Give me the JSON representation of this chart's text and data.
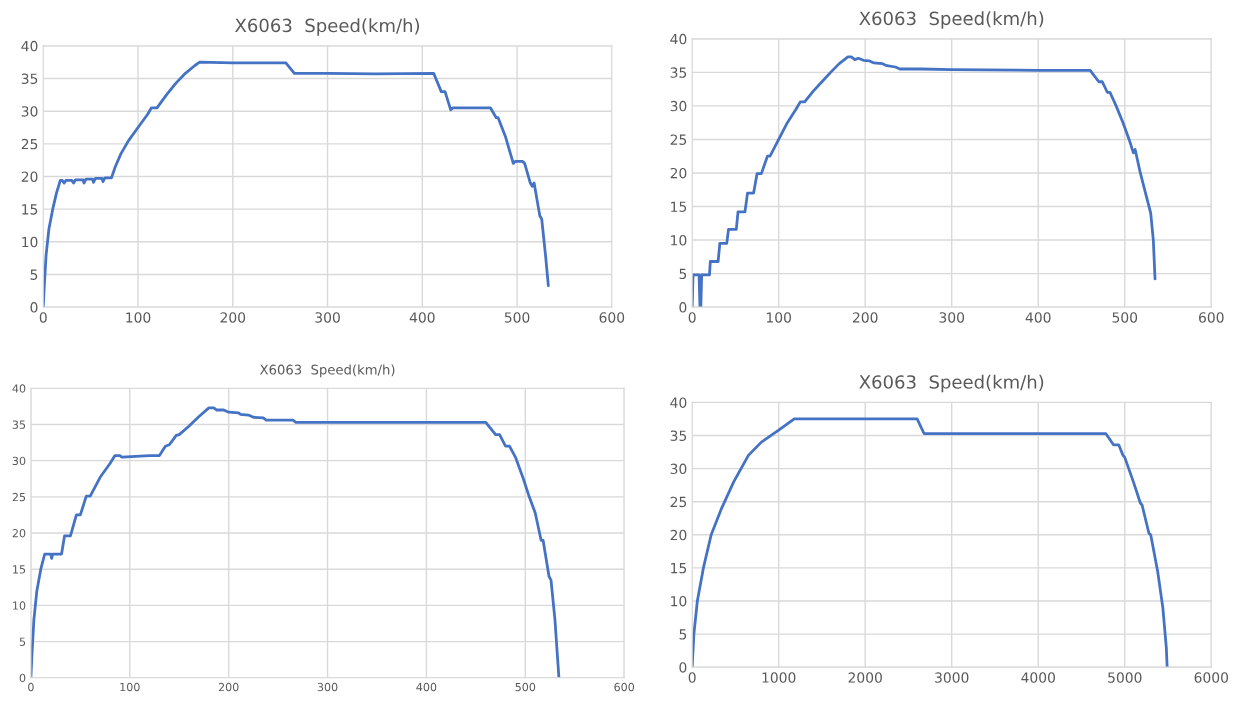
{
  "chart_data": [
    {
      "type": "line",
      "title": "X6063  Speed(km/h)",
      "xlim": [
        0,
        600
      ],
      "xticks": [
        0,
        100,
        200,
        300,
        400,
        500,
        600
      ],
      "ylim": [
        0,
        40
      ],
      "yticks": [
        0,
        5,
        10,
        15,
        20,
        25,
        30,
        35,
        40
      ],
      "grid": true,
      "marker": "none",
      "line_style": "solid",
      "series": [
        {
          "color": "#4472c4",
          "x": [
            0,
            1,
            3,
            6,
            10,
            14,
            18,
            20,
            22,
            24,
            30,
            32,
            34,
            42,
            43,
            45,
            52,
            53,
            55,
            62,
            63,
            65,
            72,
            76,
            82,
            90,
            100,
            110,
            114,
            120,
            130,
            140,
            150,
            160,
            165,
            200,
            230,
            256,
            265,
            300,
            350,
            412,
            420,
            424,
            430,
            432,
            470,
            472,
            478,
            480,
            488,
            496,
            498,
            506,
            508,
            514,
            516,
            518,
            524,
            526,
            530,
            533
          ],
          "values": [
            0,
            3,
            8,
            12,
            15,
            17.5,
            19.4,
            19.4,
            19,
            19.4,
            19.4,
            19,
            19.5,
            19.5,
            19,
            19.6,
            19.6,
            19.1,
            19.7,
            19.7,
            19.2,
            19.8,
            19.8,
            21.5,
            23.5,
            25.5,
            27.5,
            29.5,
            30.5,
            30.5,
            32.5,
            34.3,
            35.8,
            37,
            37.5,
            37.4,
            37.4,
            37.4,
            35.8,
            35.8,
            35.7,
            35.8,
            33,
            33,
            30.2,
            30.5,
            30.5,
            30.5,
            29,
            29,
            26,
            22,
            22.3,
            22.3,
            22,
            19,
            18.5,
            19,
            14,
            13.5,
            8,
            3.3
          ]
        }
      ]
    },
    {
      "type": "line",
      "title": "X6063  Speed(km/h)",
      "xlim": [
        0,
        600
      ],
      "xticks": [
        0,
        100,
        200,
        300,
        400,
        500,
        600
      ],
      "ylim": [
        0,
        40
      ],
      "yticks": [
        0,
        5,
        10,
        15,
        20,
        25,
        30,
        35,
        40
      ],
      "grid": true,
      "marker": "none",
      "line_style": "solid",
      "series": [
        {
          "color": "#4472c4",
          "x": [
            0,
            1,
            8,
            9,
            10,
            11,
            20,
            21,
            30,
            32,
            40,
            42,
            51,
            53,
            61,
            64,
            71,
            75,
            80,
            87,
            90,
            100,
            110,
            120,
            125,
            130,
            140,
            150,
            160,
            170,
            180,
            184,
            188,
            192,
            198,
            205,
            210,
            220,
            225,
            235,
            240,
            265,
            300,
            400,
            460,
            470,
            474,
            480,
            483,
            490,
            498,
            505,
            510,
            512,
            518,
            524,
            530,
            533,
            535
          ],
          "values": [
            0,
            4.8,
            4.8,
            0,
            0,
            4.8,
            4.8,
            6.8,
            6.8,
            9.5,
            9.5,
            11.6,
            11.6,
            14.2,
            14.2,
            17,
            17,
            19.9,
            19.9,
            22.5,
            22.5,
            25,
            27.5,
            29.5,
            30.6,
            30.6,
            32.2,
            33.6,
            35,
            36.3,
            37.3,
            37.3,
            36.9,
            37.1,
            36.8,
            36.7,
            36.4,
            36.3,
            36,
            35.8,
            35.5,
            35.5,
            35.4,
            35.3,
            35.3,
            33.6,
            33.6,
            32,
            32,
            30,
            27.5,
            25,
            23,
            23.5,
            20,
            17,
            14,
            10,
            4.2
          ]
        }
      ]
    },
    {
      "type": "line",
      "title": "X6063  Speed(km/h)",
      "xlim": [
        0,
        600
      ],
      "xticks": [
        0,
        100,
        200,
        300,
        400,
        500,
        600
      ],
      "ylim": [
        0,
        40
      ],
      "yticks": [
        0,
        5,
        10,
        15,
        20,
        25,
        30,
        35,
        40
      ],
      "grid": true,
      "marker": "none",
      "line_style": "solid",
      "series": [
        {
          "color": "#4472c4",
          "x": [
            0,
            1,
            3,
            6,
            10,
            14,
            20,
            21,
            22,
            31,
            34,
            40,
            46,
            50,
            56,
            60,
            70,
            80,
            85,
            90,
            92,
            120,
            130,
            136,
            140,
            147,
            150,
            160,
            170,
            180,
            185,
            188,
            195,
            200,
            210,
            212,
            220,
            225,
            235,
            238,
            265,
            268,
            300,
            400,
            460,
            470,
            474,
            480,
            484,
            490,
            498,
            504,
            510,
            516,
            518,
            524,
            526,
            530,
            533,
            534
          ],
          "values": [
            0,
            3,
            8,
            12,
            15,
            17.1,
            17.1,
            16.5,
            17.1,
            17.1,
            19.6,
            19.6,
            22.5,
            22.5,
            25.1,
            25.1,
            27.7,
            29.6,
            30.7,
            30.7,
            30.5,
            30.7,
            30.7,
            32,
            32.2,
            33.5,
            33.6,
            34.8,
            36.1,
            37.3,
            37.3,
            37,
            37,
            36.7,
            36.6,
            36.4,
            36.3,
            36,
            35.9,
            35.6,
            35.6,
            35.3,
            35.3,
            35.3,
            35.3,
            33.6,
            33.6,
            32,
            32,
            30.5,
            27.5,
            25,
            22.8,
            19,
            19,
            14,
            13.5,
            8,
            2,
            0
          ]
        }
      ]
    },
    {
      "type": "line",
      "title": "X6063  Speed(km/h)",
      "xlim": [
        0,
        6000
      ],
      "xticks": [
        0,
        1000,
        2000,
        3000,
        4000,
        5000,
        6000
      ],
      "ylim": [
        0,
        40
      ],
      "yticks": [
        0,
        5,
        10,
        15,
        20,
        25,
        30,
        35,
        40
      ],
      "grid": true,
      "marker": "none",
      "line_style": "solid",
      "series": [
        {
          "color": "#4472c4",
          "x": [
            0,
            20,
            60,
            130,
            220,
            340,
            480,
            650,
            800,
            1000,
            1180,
            2600,
            2680,
            4780,
            4870,
            4930,
            4980,
            5000,
            5100,
            5180,
            5200,
            5280,
            5300,
            5380,
            5440,
            5480,
            5490
          ],
          "values": [
            0,
            5,
            10,
            15,
            20,
            24,
            28,
            32,
            34,
            35.8,
            37.5,
            37.5,
            35.3,
            35.3,
            33.6,
            33.6,
            32,
            31.7,
            28,
            24.8,
            24.5,
            20.2,
            20,
            14.5,
            9,
            3,
            0
          ]
        }
      ]
    }
  ]
}
